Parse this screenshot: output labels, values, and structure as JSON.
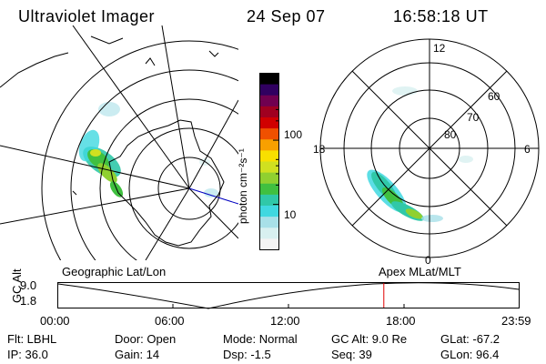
{
  "header": {
    "instrument": "Ultraviolet Imager",
    "date": "24 Sep 07",
    "time": "16:58:18 UT"
  },
  "colorbar": {
    "unit_label": "photon cm⁻²s⁻¹",
    "tick_100": "100",
    "tick_10": "10",
    "colors": [
      "#f4f4f4",
      "#d8f0f0",
      "#a8e0e8",
      "#40d8e0",
      "#30c8a8",
      "#40c040",
      "#90d030",
      "#d0e020",
      "#f8e000",
      "#f8a000",
      "#f05000",
      "#d00000",
      "#a00020",
      "#700050",
      "#300060",
      "#000000"
    ]
  },
  "polar_plot": {
    "lbl_12": "12",
    "lbl_6": "6",
    "lbl_18": "18",
    "lbl_0": "0",
    "lbl_60": "60",
    "lbl_70": "70",
    "lbl_80": "80"
  },
  "timeline": {
    "ylabel": "GC Alt",
    "ytick_top": "9.0",
    "ytick_bottom": "1.8",
    "left_caption": "Geographic Lat/Lon",
    "right_caption": "Apex MLat/MLT",
    "xticks": [
      "00:00",
      "06:00",
      "12:00",
      "18:00",
      "23:59"
    ],
    "current_hour": 16.97
  },
  "status": {
    "flt": "Flt: LBHL",
    "door": "Door: Open",
    "mode": "Mode: Normal",
    "gc_alt": "GC Alt: 9.0 Re",
    "glat": "GLat: -67.2",
    "ip": "IP: 36.0",
    "gain": "Gain: 14",
    "dsp": "Dsp:    -1.5",
    "seq": "Seq: 39",
    "glon": "GLon:  96.4"
  }
}
